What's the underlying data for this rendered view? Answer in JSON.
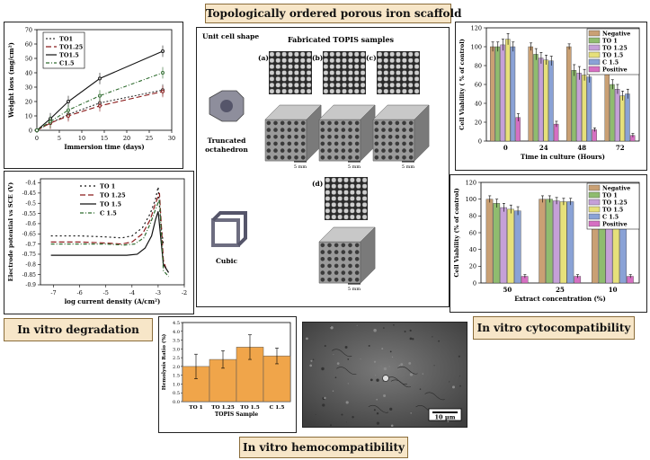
{
  "title": "Topologically ordered porous iron scaffold",
  "sections": {
    "degradation": "In vitro degradation",
    "cytocompatibility": "In vitro cytocompatibility",
    "hemocompatibility": "In vitro hemocompatibility"
  },
  "scaffold": {
    "col1_header": "Unit cell shape",
    "col2_header": "Fabricated TOPIS samples",
    "panel_labels": [
      "(a)",
      "(b)",
      "(c)",
      "(d)"
    ],
    "shape1": "Truncated octahedron",
    "shape2": "Cubic",
    "scale": "5 mm"
  },
  "sem": {
    "scale": "10 μm"
  },
  "chart_data": [
    {
      "type": "line",
      "xlabel": "Immersion time (days)",
      "ylabel": "Weight loss (mg/cm²)",
      "xlim": [
        0,
        30
      ],
      "ylim": [
        0,
        70
      ],
      "xticks": [
        "0",
        "5",
        "10",
        "15",
        "20",
        "25",
        "30"
      ],
      "yticks": [
        "0",
        "10",
        "20",
        "30",
        "40",
        "50",
        "60",
        "70"
      ],
      "legend": [
        "TO1",
        "TO1.25",
        "TO1.5",
        "C1.5"
      ],
      "legend_position": "top-left",
      "colors": [
        "#333333",
        "#8b1a1a",
        "#111111",
        "#2e6b2e"
      ],
      "x": [
        0,
        3,
        7,
        14,
        28
      ],
      "series": [
        {
          "name": "TO1",
          "values": [
            0,
            5,
            11,
            19,
            28
          ]
        },
        {
          "name": "TO1.25",
          "values": [
            0,
            5,
            10,
            17,
            27
          ]
        },
        {
          "name": "TO1.5",
          "values": [
            0,
            8,
            20,
            36,
            55
          ]
        },
        {
          "name": "C1.5",
          "values": [
            0,
            6,
            14,
            24,
            40
          ]
        }
      ]
    },
    {
      "type": "line",
      "xlabel": "log current density (A/cm²)",
      "ylabel": "Electrode potential vs SCE (V)",
      "xlim": [
        -7.5,
        -2
      ],
      "ylim": [
        -0.9,
        -0.38
      ],
      "xticks": [
        "-7",
        "-6",
        "-5",
        "-4",
        "-3",
        "-2"
      ],
      "yticks": [
        "-0.4",
        "-0.45",
        "-0.5",
        "-0.55",
        "-0.6",
        "-0.65",
        "-0.7",
        "-0.75",
        "-0.8",
        "-0.85",
        "-0.9"
      ],
      "legend": [
        "TO 1",
        "TO 1.25",
        "TO 1.5",
        "C 1.5"
      ],
      "legend_position": "top-left",
      "colors": [
        "#111111",
        "#8b1a1a",
        "#111111",
        "#2e6b2e"
      ],
      "series": [
        {
          "name": "TO 1",
          "ecorr": -0.66,
          "x": [
            -7.1,
            -6,
            -5,
            -4.4,
            -4,
            -3.6,
            -3.3,
            -3.1,
            -3.0,
            -2.9,
            -2.8
          ],
          "values": [
            -0.66,
            -0.66,
            -0.665,
            -0.67,
            -0.66,
            -0.62,
            -0.55,
            -0.48,
            -0.42,
            -0.6,
            -0.7
          ]
        },
        {
          "name": "TO 1.25",
          "ecorr": -0.69,
          "x": [
            -7.1,
            -6,
            -5,
            -4.4,
            -4,
            -3.6,
            -3.3,
            -3.1,
            -2.95,
            -2.8,
            -2.7
          ],
          "values": [
            -0.69,
            -0.69,
            -0.695,
            -0.7,
            -0.69,
            -0.65,
            -0.58,
            -0.5,
            -0.45,
            -0.78,
            -0.82
          ]
        },
        {
          "name": "TO 1.5",
          "ecorr": -0.755,
          "x": [
            -7.1,
            -6,
            -5,
            -4.2,
            -3.8,
            -3.5,
            -3.25,
            -3.1,
            -3.0,
            -2.8,
            -2.6
          ],
          "values": [
            -0.755,
            -0.755,
            -0.755,
            -0.755,
            -0.75,
            -0.72,
            -0.66,
            -0.58,
            -0.54,
            -0.8,
            -0.84
          ]
        },
        {
          "name": "C 1.5",
          "ecorr": -0.7,
          "x": [
            -7.1,
            -6,
            -5,
            -4.3,
            -3.9,
            -3.55,
            -3.3,
            -3.1,
            -2.95,
            -2.8,
            -2.6
          ],
          "values": [
            -0.7,
            -0.7,
            -0.7,
            -0.705,
            -0.7,
            -0.67,
            -0.6,
            -0.53,
            -0.48,
            -0.83,
            -0.86
          ]
        }
      ]
    },
    {
      "type": "bar",
      "xlabel": "Time in culture (Hours)",
      "ylabel": "Cell Viability ( % of control)",
      "ylim": [
        0,
        120
      ],
      "yticks": [
        "0",
        "20",
        "40",
        "60",
        "80",
        "100",
        "120"
      ],
      "categories": [
        "0",
        "24",
        "48",
        "72"
      ],
      "legend": [
        "Negative",
        "TO 1",
        "TO 1.25",
        "TO 1.5",
        "C 1.5",
        "Positive"
      ],
      "legend_position": "top-right",
      "colors": [
        "#c9a074",
        "#8fbc6f",
        "#c5a0d8",
        "#e6e07a",
        "#8aa2d6",
        "#d66fc2"
      ],
      "series": [
        {
          "name": "Negative",
          "values": [
            100,
            100,
            100,
            100
          ]
        },
        {
          "name": "TO 1",
          "values": [
            100,
            92,
            75,
            60
          ]
        },
        {
          "name": "TO 1.25",
          "values": [
            102,
            88,
            72,
            55
          ]
        },
        {
          "name": "TO 1.5",
          "values": [
            108,
            86,
            70,
            48
          ]
        },
        {
          "name": "C 1.5",
          "values": [
            100,
            85,
            68,
            50
          ]
        },
        {
          "name": "Positive",
          "values": [
            25,
            18,
            12,
            6
          ]
        }
      ],
      "errors": [
        [
          5,
          4,
          3,
          4
        ],
        [
          5,
          6,
          6,
          5
        ],
        [
          6,
          6,
          7,
          5
        ],
        [
          6,
          5,
          6,
          5
        ],
        [
          5,
          5,
          6,
          5
        ],
        [
          4,
          3,
          2,
          2
        ]
      ]
    },
    {
      "type": "bar",
      "xlabel": "Extract concentration (%)",
      "ylabel": "Cell Viability (% of control)",
      "ylim": [
        0,
        120
      ],
      "yticks": [
        "0",
        "20",
        "40",
        "60",
        "80",
        "100",
        "120"
      ],
      "categories": [
        "50",
        "25",
        "10"
      ],
      "legend": [
        "Negative",
        "TO 1",
        "TO 1.25",
        "TO 1.5",
        "C 1.5",
        "Positive"
      ],
      "legend_position": "top-right",
      "colors": [
        "#c9a074",
        "#8fbc6f",
        "#c5a0d8",
        "#e6e07a",
        "#8aa2d6",
        "#d66fc2"
      ],
      "series": [
        {
          "name": "Negative",
          "values": [
            100,
            100,
            100
          ]
        },
        {
          "name": "TO 1",
          "values": [
            95,
            100,
            106
          ]
        },
        {
          "name": "TO 1.25",
          "values": [
            90,
            98,
            102
          ]
        },
        {
          "name": "TO 1.5",
          "values": [
            88,
            97,
            100
          ]
        },
        {
          "name": "C 1.5",
          "values": [
            86,
            97,
            101
          ]
        },
        {
          "name": "Positive",
          "values": [
            8,
            8,
            8
          ]
        }
      ],
      "errors": [
        [
          4,
          4,
          3
        ],
        [
          5,
          4,
          4
        ],
        [
          5,
          4,
          4
        ],
        [
          5,
          4,
          4
        ],
        [
          5,
          4,
          4
        ],
        [
          2,
          2,
          2
        ]
      ]
    },
    {
      "type": "bar",
      "xlabel": "TOPIS Sample",
      "ylabel": "Hemolysis Ratio (%)",
      "ylim": [
        0,
        4.5
      ],
      "yticks": [
        "0.0",
        "0.5",
        "1.0",
        "1.5",
        "2.0",
        "2.5",
        "3.0",
        "3.5",
        "4.0",
        "4.5"
      ],
      "categories": [
        "TO 1",
        "TO 1.25",
        "TO 1.5",
        "C 1.5"
      ],
      "color": "#f0a54a",
      "values": [
        2.0,
        2.4,
        3.1,
        2.6
      ],
      "errors": [
        0.7,
        0.5,
        0.7,
        0.45
      ]
    }
  ]
}
